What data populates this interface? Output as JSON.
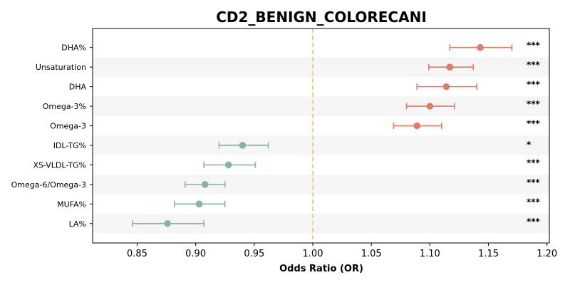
{
  "chart_data": {
    "type": "scatter",
    "subtype": "forest-plot",
    "title": "CD2_BENIGN_COLORECANI",
    "xlabel": "Odds Ratio (OR)",
    "ylabel": "",
    "xlim": [
      0.812,
      1.202
    ],
    "xticks": [
      "0.85",
      "0.90",
      "0.95",
      "1.00",
      "1.05",
      "1.10",
      "1.15",
      "1.20"
    ],
    "reference_line": {
      "x": 1.0,
      "style": "dashed",
      "color": "#f5c57a"
    },
    "colors": {
      "risk": "#e07b65",
      "protective": "#86b49c",
      "stripe": "#f5f5f5"
    },
    "categories": [
      "DHA%",
      "Unsaturation",
      "DHA",
      "Omega-3%",
      "Omega-3",
      "IDL-TG%",
      "XS-VLDL-TG%",
      "Omega-6/Omega-3",
      "MUFA%",
      "LA%"
    ],
    "or": [
      1.143,
      1.117,
      1.114,
      1.1,
      1.089,
      0.94,
      0.928,
      0.908,
      0.903,
      0.876
    ],
    "ci_low": [
      1.117,
      1.099,
      1.089,
      1.08,
      1.069,
      0.92,
      0.907,
      0.891,
      0.882,
      0.846
    ],
    "ci_high": [
      1.17,
      1.137,
      1.14,
      1.121,
      1.11,
      0.962,
      0.951,
      0.925,
      0.925,
      0.907
    ],
    "significance": [
      "***",
      "***",
      "***",
      "***",
      "***",
      "*",
      "***",
      "***",
      "***",
      "***"
    ],
    "grid": false
  }
}
